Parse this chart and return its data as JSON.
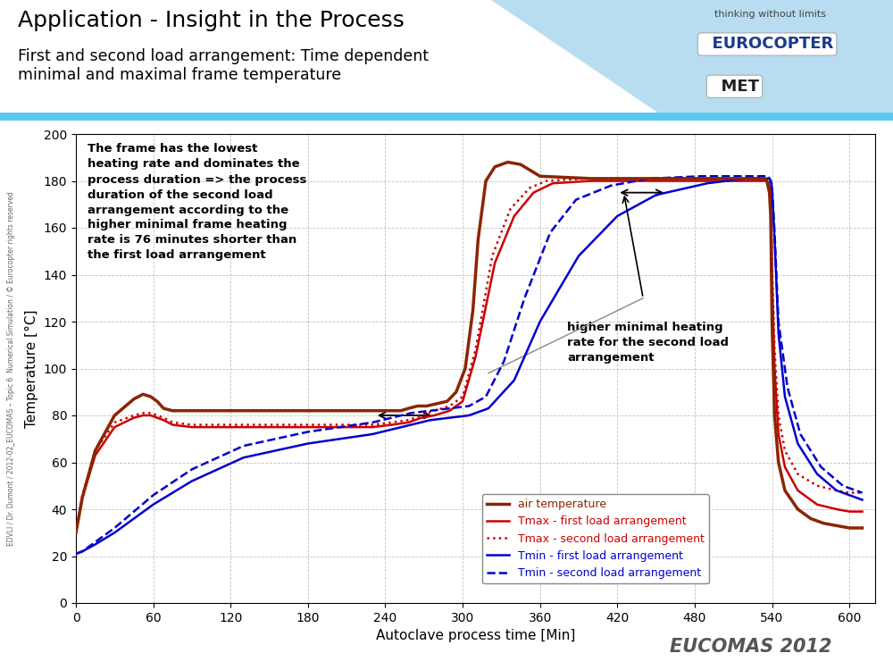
{
  "title1": "Application - Insight in the Process",
  "title2": "First and second load arrangement: Time dependent\nminimal and maximal frame temperature",
  "xlabel": "Autoclave process time [Min]",
  "ylabel": "Temperature [°C]",
  "xlim": [
    0,
    620
  ],
  "ylim": [
    0,
    200
  ],
  "xticks": [
    0,
    60,
    120,
    180,
    240,
    300,
    360,
    420,
    480,
    540,
    600
  ],
  "yticks": [
    0,
    20,
    40,
    60,
    80,
    100,
    120,
    140,
    160,
    180,
    200
  ],
  "grid_color": "#bbbbbb",
  "annotation1_text": "The frame has the lowest\nheating rate and dominates the\nprocess duration => the process\nduration of the second load\narrangement according to the\nhigher minimal frame heating\nrate is 76 minutes shorter than\nthe first load arrangement",
  "annotation2_text": "higher minimal heating\nrate for the second load\narrangement",
  "colors": {
    "air_temp": "#8B2500",
    "tmax_first": "#cc0000",
    "tmax_second": "#cc0000",
    "tmin_first": "#0000cc",
    "tmin_second": "#0000cc"
  },
  "legend_labels": [
    "air temperature",
    "Tmax - first load arrangement",
    "Tmax - second load arrangement",
    "Tmin - first load arrangement",
    "Tmin - second load arrangement"
  ],
  "footer_text": "EDVLI / Dr. Dumont / 2012-02_EUCOMAS – Topic 6  Numerical Simulation / © Eurocopter rights reserved",
  "eucomas_text": "EUCOMAS 2012"
}
